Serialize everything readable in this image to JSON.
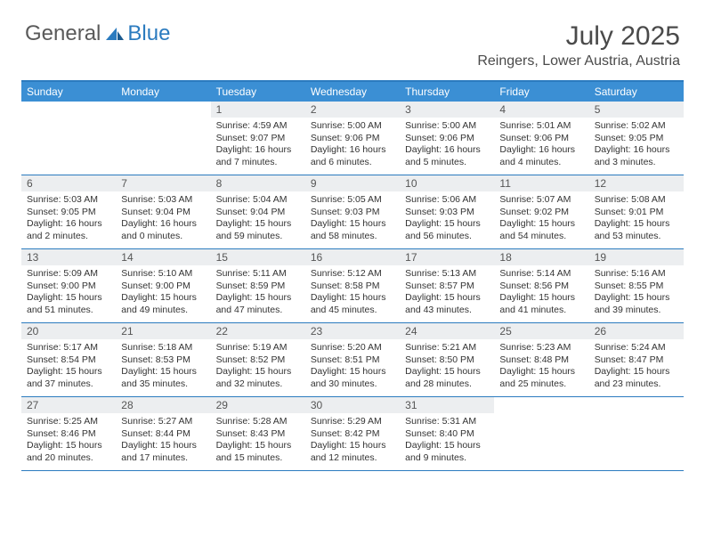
{
  "brand": {
    "part1": "General",
    "part2": "Blue",
    "accent_color": "#2b7bbf",
    "text_color": "#5a5a5a"
  },
  "title": "July 2025",
  "location": "Reingers, Lower Austria, Austria",
  "header_bg": "#3b8fd4",
  "header_fg": "#ffffff",
  "daynum_bg": "#eceef0",
  "border_color": "#2b7bbf",
  "day_headers": [
    "Sunday",
    "Monday",
    "Tuesday",
    "Wednesday",
    "Thursday",
    "Friday",
    "Saturday"
  ],
  "weeks": [
    [
      {
        "n": "",
        "sr": "",
        "ss": "",
        "dl": ""
      },
      {
        "n": "",
        "sr": "",
        "ss": "",
        "dl": ""
      },
      {
        "n": "1",
        "sr": "4:59 AM",
        "ss": "9:07 PM",
        "dl": "16 hours and 7 minutes."
      },
      {
        "n": "2",
        "sr": "5:00 AM",
        "ss": "9:06 PM",
        "dl": "16 hours and 6 minutes."
      },
      {
        "n": "3",
        "sr": "5:00 AM",
        "ss": "9:06 PM",
        "dl": "16 hours and 5 minutes."
      },
      {
        "n": "4",
        "sr": "5:01 AM",
        "ss": "9:06 PM",
        "dl": "16 hours and 4 minutes."
      },
      {
        "n": "5",
        "sr": "5:02 AM",
        "ss": "9:05 PM",
        "dl": "16 hours and 3 minutes."
      }
    ],
    [
      {
        "n": "6",
        "sr": "5:03 AM",
        "ss": "9:05 PM",
        "dl": "16 hours and 2 minutes."
      },
      {
        "n": "7",
        "sr": "5:03 AM",
        "ss": "9:04 PM",
        "dl": "16 hours and 0 minutes."
      },
      {
        "n": "8",
        "sr": "5:04 AM",
        "ss": "9:04 PM",
        "dl": "15 hours and 59 minutes."
      },
      {
        "n": "9",
        "sr": "5:05 AM",
        "ss": "9:03 PM",
        "dl": "15 hours and 58 minutes."
      },
      {
        "n": "10",
        "sr": "5:06 AM",
        "ss": "9:03 PM",
        "dl": "15 hours and 56 minutes."
      },
      {
        "n": "11",
        "sr": "5:07 AM",
        "ss": "9:02 PM",
        "dl": "15 hours and 54 minutes."
      },
      {
        "n": "12",
        "sr": "5:08 AM",
        "ss": "9:01 PM",
        "dl": "15 hours and 53 minutes."
      }
    ],
    [
      {
        "n": "13",
        "sr": "5:09 AM",
        "ss": "9:00 PM",
        "dl": "15 hours and 51 minutes."
      },
      {
        "n": "14",
        "sr": "5:10 AM",
        "ss": "9:00 PM",
        "dl": "15 hours and 49 minutes."
      },
      {
        "n": "15",
        "sr": "5:11 AM",
        "ss": "8:59 PM",
        "dl": "15 hours and 47 minutes."
      },
      {
        "n": "16",
        "sr": "5:12 AM",
        "ss": "8:58 PM",
        "dl": "15 hours and 45 minutes."
      },
      {
        "n": "17",
        "sr": "5:13 AM",
        "ss": "8:57 PM",
        "dl": "15 hours and 43 minutes."
      },
      {
        "n": "18",
        "sr": "5:14 AM",
        "ss": "8:56 PM",
        "dl": "15 hours and 41 minutes."
      },
      {
        "n": "19",
        "sr": "5:16 AM",
        "ss": "8:55 PM",
        "dl": "15 hours and 39 minutes."
      }
    ],
    [
      {
        "n": "20",
        "sr": "5:17 AM",
        "ss": "8:54 PM",
        "dl": "15 hours and 37 minutes."
      },
      {
        "n": "21",
        "sr": "5:18 AM",
        "ss": "8:53 PM",
        "dl": "15 hours and 35 minutes."
      },
      {
        "n": "22",
        "sr": "5:19 AM",
        "ss": "8:52 PM",
        "dl": "15 hours and 32 minutes."
      },
      {
        "n": "23",
        "sr": "5:20 AM",
        "ss": "8:51 PM",
        "dl": "15 hours and 30 minutes."
      },
      {
        "n": "24",
        "sr": "5:21 AM",
        "ss": "8:50 PM",
        "dl": "15 hours and 28 minutes."
      },
      {
        "n": "25",
        "sr": "5:23 AM",
        "ss": "8:48 PM",
        "dl": "15 hours and 25 minutes."
      },
      {
        "n": "26",
        "sr": "5:24 AM",
        "ss": "8:47 PM",
        "dl": "15 hours and 23 minutes."
      }
    ],
    [
      {
        "n": "27",
        "sr": "5:25 AM",
        "ss": "8:46 PM",
        "dl": "15 hours and 20 minutes."
      },
      {
        "n": "28",
        "sr": "5:27 AM",
        "ss": "8:44 PM",
        "dl": "15 hours and 17 minutes."
      },
      {
        "n": "29",
        "sr": "5:28 AM",
        "ss": "8:43 PM",
        "dl": "15 hours and 15 minutes."
      },
      {
        "n": "30",
        "sr": "5:29 AM",
        "ss": "8:42 PM",
        "dl": "15 hours and 12 minutes."
      },
      {
        "n": "31",
        "sr": "5:31 AM",
        "ss": "8:40 PM",
        "dl": "15 hours and 9 minutes."
      },
      {
        "n": "",
        "sr": "",
        "ss": "",
        "dl": ""
      },
      {
        "n": "",
        "sr": "",
        "ss": "",
        "dl": ""
      }
    ]
  ],
  "labels": {
    "sunrise": "Sunrise:",
    "sunset": "Sunset:",
    "daylight": "Daylight:"
  }
}
